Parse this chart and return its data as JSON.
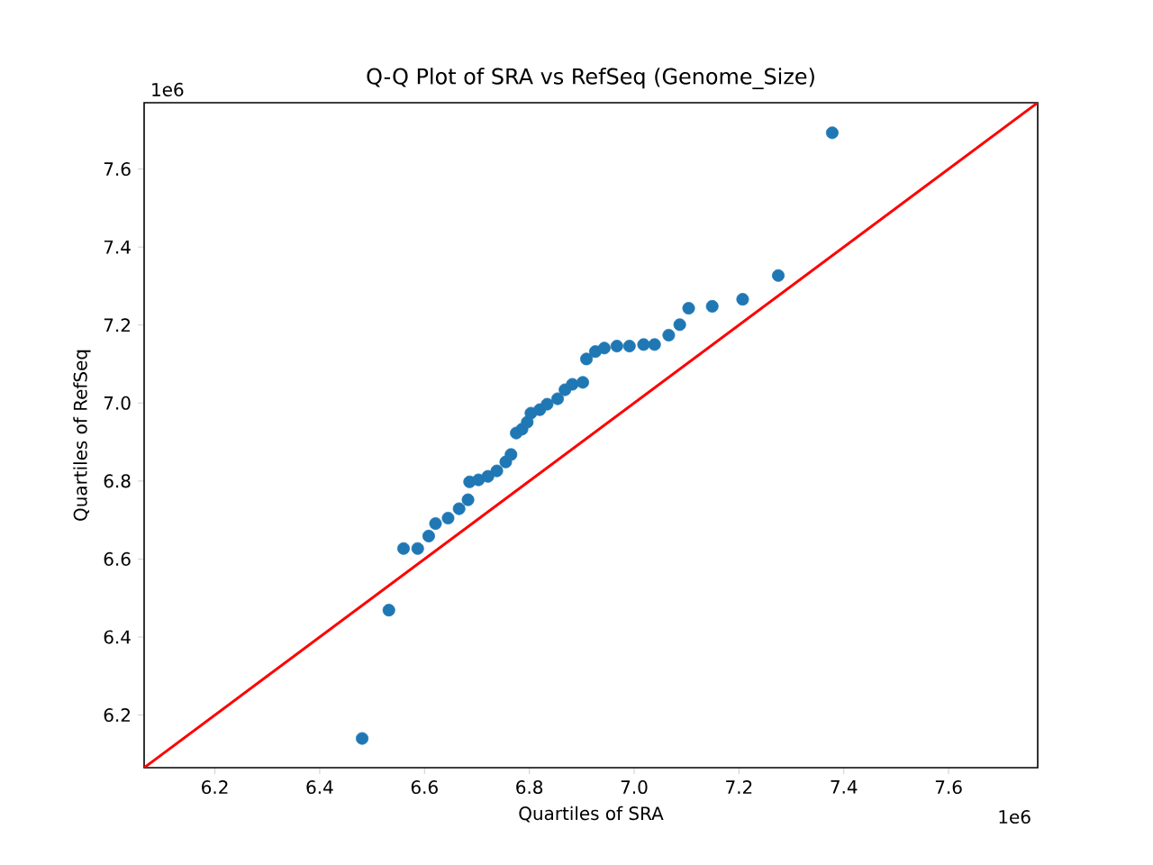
{
  "chart_data": {
    "type": "scatter",
    "title": "Q-Q Plot of SRA vs RefSeq (Genome_Size)",
    "xlabel": "Quartiles of SRA",
    "ylabel": "Quartiles of RefSeq",
    "annotations": [
      "1e6",
      "1e6"
    ],
    "xlim": [
      6.065,
      7.77
    ],
    "ylim": [
      6.065,
      7.77
    ],
    "xticks": [
      6.2,
      6.4,
      6.6,
      6.8,
      {
        "value": 7,
        "label": "7.0"
      },
      7.2,
      7.4,
      7.6
    ],
    "yticks": [
      6.2,
      6.4,
      6.6,
      6.8,
      {
        "value": 7,
        "label": "7.0"
      },
      7.2,
      7.4,
      7.6
    ],
    "grid": false,
    "series": [
      {
        "marker": "circle",
        "color": "#1f77b4",
        "x": [
          6.481,
          6.532,
          6.56,
          6.587,
          6.608,
          6.621,
          6.645,
          6.666,
          6.683,
          6.686,
          6.703,
          6.721,
          6.738,
          6.755,
          6.765,
          6.775,
          6.786,
          6.796,
          6.803,
          6.82,
          6.834,
          6.854,
          6.868,
          6.882,
          6.902,
          6.909,
          6.926,
          6.943,
          6.967,
          6.991,
          7.018,
          7.039,
          7.066,
          7.087,
          7.104,
          7.149,
          7.207,
          7.275,
          7.378
        ],
        "values": [
          6.14,
          6.469,
          6.627,
          6.627,
          6.659,
          6.691,
          6.705,
          6.729,
          6.752,
          6.798,
          6.803,
          6.812,
          6.826,
          6.849,
          6.868,
          6.923,
          6.933,
          6.951,
          6.974,
          6.983,
          6.997,
          7.011,
          7.034,
          7.048,
          7.053,
          7.113,
          7.132,
          7.141,
          7.146,
          7.146,
          7.15,
          7.15,
          7.174,
          7.201,
          7.243,
          7.248,
          7.266,
          7.327,
          7.693
        ]
      },
      {
        "type": "line",
        "marker": "none",
        "line_style": "solid",
        "color": "#ff0000",
        "x": [
          6.065,
          7.77
        ],
        "values": [
          6.065,
          7.77
        ]
      }
    ]
  }
}
